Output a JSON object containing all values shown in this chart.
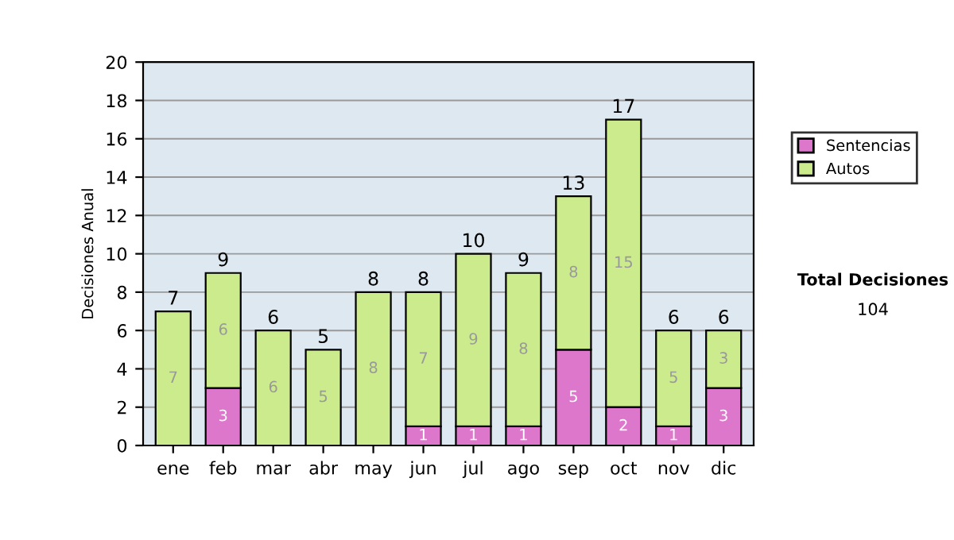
{
  "chart_data": {
    "type": "bar",
    "stacked": true,
    "ylabel": "Decisiones Anual",
    "categories": [
      "ene",
      "feb",
      "mar",
      "abr",
      "may",
      "jun",
      "jul",
      "ago",
      "sep",
      "oct",
      "nov",
      "dic"
    ],
    "series": [
      {
        "name": "Sentencias",
        "color": "#dd77cc",
        "values": [
          0,
          3,
          0,
          0,
          0,
          1,
          1,
          1,
          5,
          2,
          1,
          3
        ],
        "value_labels": [
          null,
          "3",
          null,
          null,
          null,
          "1",
          "1",
          "1",
          "5",
          "2",
          "1",
          "3"
        ]
      },
      {
        "name": "Autos",
        "color": "#cceb8c",
        "values": [
          7,
          6,
          6,
          5,
          8,
          7,
          9,
          8,
          8,
          15,
          5,
          3
        ],
        "value_labels": [
          "7",
          "6",
          "6",
          "5",
          "8",
          "7",
          "9",
          "8",
          "8",
          "15",
          "5",
          "3"
        ]
      }
    ],
    "totals": [
      "7",
      "9",
      "6",
      "5",
      "8",
      "8",
      "10",
      "9",
      "13",
      "17",
      "6",
      "6"
    ],
    "ylim": [
      0,
      20
    ],
    "yticks": [
      0,
      2,
      4,
      6,
      8,
      10,
      12,
      14,
      16,
      18,
      20
    ],
    "grid": "y",
    "legend": "right",
    "annotations": [
      "Total Decisiones",
      "104"
    ]
  }
}
